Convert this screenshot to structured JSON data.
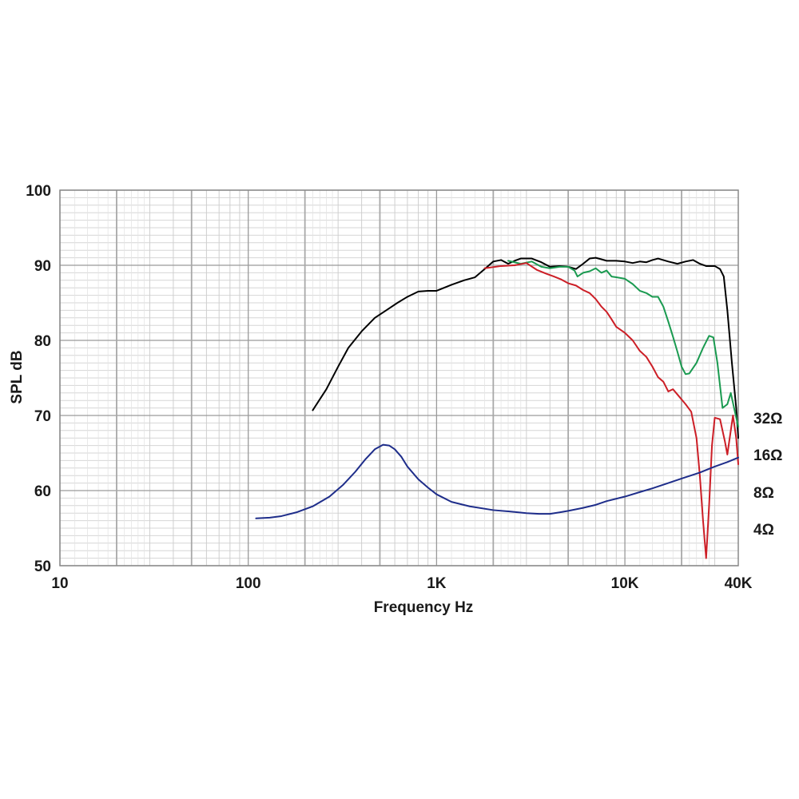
{
  "chart_data": {
    "type": "line",
    "xlabel": "Frequency Hz",
    "ylabel": "SPL dB",
    "x_scale": "log",
    "xlim": [
      10,
      40000
    ],
    "ylim": [
      50,
      100
    ],
    "x_ticks": [
      {
        "value": 10,
        "label": "10"
      },
      {
        "value": 100,
        "label": "100"
      },
      {
        "value": 1000,
        "label": "1K"
      },
      {
        "value": 10000,
        "label": "10K"
      },
      {
        "value": 40000,
        "label": "40K"
      }
    ],
    "y_ticks": [
      {
        "value": 50,
        "label": "50"
      },
      {
        "value": 60,
        "label": "60"
      },
      {
        "value": 70,
        "label": "70"
      },
      {
        "value": 80,
        "label": "80"
      },
      {
        "value": 90,
        "label": "90"
      },
      {
        "value": 100,
        "label": "100"
      }
    ],
    "grid": true,
    "right_axis_labels": [
      {
        "label": "32Ω",
        "level": 69.7
      },
      {
        "label": "16Ω",
        "level": 64.8
      },
      {
        "label": "8Ω",
        "level": 59.8
      },
      {
        "label": "4Ω",
        "level": 54.9
      }
    ],
    "series": [
      {
        "color": "#000000",
        "points": [
          [
            220,
            70.7
          ],
          [
            260,
            73.5
          ],
          [
            300,
            76.5
          ],
          [
            340,
            79
          ],
          [
            400,
            81.2
          ],
          [
            470,
            83
          ],
          [
            540,
            84
          ],
          [
            620,
            85
          ],
          [
            700,
            85.8
          ],
          [
            800,
            86.5
          ],
          [
            900,
            86.6
          ],
          [
            1000,
            86.6
          ],
          [
            1200,
            87.4
          ],
          [
            1400,
            88
          ],
          [
            1600,
            88.4
          ],
          [
            1800,
            89.5
          ],
          [
            2000,
            90.5
          ],
          [
            2200,
            90.7
          ],
          [
            2400,
            90.2
          ],
          [
            2600,
            90.6
          ],
          [
            2800,
            90.9
          ],
          [
            3200,
            90.9
          ],
          [
            3600,
            90.4
          ],
          [
            4000,
            89.8
          ],
          [
            4500,
            89.9
          ],
          [
            5000,
            89.8
          ],
          [
            5500,
            89.5
          ],
          [
            6000,
            90.2
          ],
          [
            6500,
            90.9
          ],
          [
            7000,
            91
          ],
          [
            7500,
            90.8
          ],
          [
            8000,
            90.6
          ],
          [
            9000,
            90.6
          ],
          [
            10000,
            90.5
          ],
          [
            11000,
            90.3
          ],
          [
            12000,
            90.5
          ],
          [
            13000,
            90.4
          ],
          [
            14000,
            90.7
          ],
          [
            15000,
            90.9
          ],
          [
            17000,
            90.5
          ],
          [
            19000,
            90.2
          ],
          [
            21000,
            90.5
          ],
          [
            23000,
            90.7
          ],
          [
            25000,
            90.2
          ],
          [
            27000,
            89.9
          ],
          [
            30000,
            89.9
          ],
          [
            32000,
            89.5
          ],
          [
            33500,
            88.5
          ],
          [
            35000,
            84
          ],
          [
            37000,
            77
          ],
          [
            39000,
            71
          ],
          [
            40000,
            67
          ]
        ]
      },
      {
        "color": "#1a9a50",
        "points": [
          [
            2400,
            90.6
          ],
          [
            2800,
            90.2
          ],
          [
            3200,
            90.5
          ],
          [
            3600,
            89.8
          ],
          [
            4000,
            89.6
          ],
          [
            4500,
            89.8
          ],
          [
            5000,
            89.8
          ],
          [
            5400,
            89.3
          ],
          [
            5600,
            88.5
          ],
          [
            6000,
            89
          ],
          [
            6500,
            89.2
          ],
          [
            7000,
            89.6
          ],
          [
            7500,
            89
          ],
          [
            8000,
            89.3
          ],
          [
            8500,
            88.5
          ],
          [
            9000,
            88.4
          ],
          [
            10000,
            88.2
          ],
          [
            11000,
            87.5
          ],
          [
            12000,
            86.6
          ],
          [
            13000,
            86.3
          ],
          [
            14000,
            85.8
          ],
          [
            15000,
            85.8
          ],
          [
            16000,
            84.5
          ],
          [
            17000,
            82.5
          ],
          [
            18000,
            80.5
          ],
          [
            19000,
            78.5
          ],
          [
            20000,
            76.5
          ],
          [
            21000,
            75.5
          ],
          [
            22000,
            75.6
          ],
          [
            24000,
            77
          ],
          [
            26000,
            79
          ],
          [
            28000,
            80.6
          ],
          [
            29500,
            80.4
          ],
          [
            31000,
            77
          ],
          [
            33000,
            71
          ],
          [
            35000,
            71.5
          ],
          [
            36500,
            73
          ],
          [
            38000,
            71
          ],
          [
            40000,
            68.5
          ]
        ]
      },
      {
        "color": "#cc1e26",
        "points": [
          [
            1800,
            89.6
          ],
          [
            2200,
            89.9
          ],
          [
            2600,
            90
          ],
          [
            3000,
            90.3
          ],
          [
            3400,
            89.4
          ],
          [
            3800,
            88.9
          ],
          [
            4200,
            88.5
          ],
          [
            4600,
            88.1
          ],
          [
            5000,
            87.6
          ],
          [
            5500,
            87.3
          ],
          [
            6000,
            86.7
          ],
          [
            6500,
            86.3
          ],
          [
            7000,
            85.5
          ],
          [
            7500,
            84.5
          ],
          [
            8000,
            83.8
          ],
          [
            8500,
            82.8
          ],
          [
            9000,
            81.8
          ],
          [
            10000,
            81
          ],
          [
            11000,
            80
          ],
          [
            12000,
            78.6
          ],
          [
            13000,
            77.8
          ],
          [
            14000,
            76.5
          ],
          [
            15000,
            75.1
          ],
          [
            16000,
            74.5
          ],
          [
            17000,
            73.2
          ],
          [
            18000,
            73.5
          ],
          [
            19000,
            72.8
          ],
          [
            21000,
            71.5
          ],
          [
            22500,
            70.5
          ],
          [
            24000,
            67
          ],
          [
            25000,
            62
          ],
          [
            26000,
            56
          ],
          [
            27000,
            51
          ],
          [
            28000,
            58
          ],
          [
            29000,
            66
          ],
          [
            30000,
            69.7
          ],
          [
            32000,
            69.5
          ],
          [
            34000,
            66.5
          ],
          [
            35000,
            64.8
          ],
          [
            36500,
            68
          ],
          [
            37500,
            70
          ],
          [
            39000,
            67
          ],
          [
            40000,
            63.5
          ]
        ]
      },
      {
        "color": "#1e2d8a",
        "points": [
          [
            110,
            56.3
          ],
          [
            130,
            56.4
          ],
          [
            150,
            56.6
          ],
          [
            180,
            57.1
          ],
          [
            220,
            57.9
          ],
          [
            270,
            59.2
          ],
          [
            320,
            60.8
          ],
          [
            370,
            62.5
          ],
          [
            420,
            64.2
          ],
          [
            470,
            65.5
          ],
          [
            520,
            66.1
          ],
          [
            560,
            66
          ],
          [
            600,
            65.5
          ],
          [
            650,
            64.5
          ],
          [
            700,
            63.2
          ],
          [
            800,
            61.5
          ],
          [
            900,
            60.4
          ],
          [
            1000,
            59.5
          ],
          [
            1200,
            58.5
          ],
          [
            1500,
            57.9
          ],
          [
            2000,
            57.4
          ],
          [
            2500,
            57.2
          ],
          [
            3000,
            57
          ],
          [
            3500,
            56.9
          ],
          [
            4000,
            56.9
          ],
          [
            4500,
            57.1
          ],
          [
            5000,
            57.3
          ],
          [
            6000,
            57.7
          ],
          [
            7000,
            58.1
          ],
          [
            8000,
            58.6
          ],
          [
            10000,
            59.2
          ],
          [
            12000,
            59.8
          ],
          [
            14000,
            60.3
          ],
          [
            17000,
            61
          ],
          [
            20000,
            61.6
          ],
          [
            25000,
            62.4
          ],
          [
            30000,
            63.2
          ],
          [
            35000,
            63.8
          ],
          [
            40000,
            64.4
          ]
        ]
      }
    ]
  }
}
